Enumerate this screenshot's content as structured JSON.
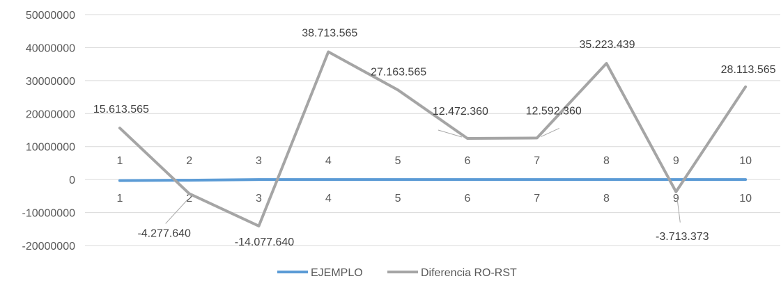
{
  "chart_data": {
    "type": "line",
    "title": "",
    "xlabel": "",
    "ylabel": "",
    "categories": [
      "1",
      "2",
      "3",
      "4",
      "5",
      "6",
      "7",
      "8",
      "9",
      "10"
    ],
    "ylim": [
      -20000000,
      50000000
    ],
    "yticks": [
      50000000,
      40000000,
      30000000,
      20000000,
      10000000,
      0,
      -10000000,
      -20000000
    ],
    "ytick_labels": [
      "50000000",
      "40000000",
      "30000000",
      "20000000",
      "10000000",
      "0",
      "-10000000",
      "-20000000"
    ],
    "grid": true,
    "legend_position": "bottom",
    "series": [
      {
        "name": "EJEMPLO",
        "color": "#5B9BD5",
        "values": [
          -300000,
          -200000,
          0,
          0,
          0,
          0,
          0,
          0,
          0,
          0
        ]
      },
      {
        "name": "Diferencia RO-RST",
        "color": "#A5A5A5",
        "values": [
          15613565,
          -4277640,
          -14077640,
          38713565,
          27163565,
          12472360,
          12592360,
          35223439,
          -3713373,
          28113565
        ],
        "data_labels": [
          "15.613.565",
          "-4.277.640",
          "-14.077.640",
          "38.713.565",
          "27.163.565",
          "12.472.360",
          "12.592.360",
          "35.223.439",
          "-3.713.373",
          "28.113.565"
        ]
      }
    ]
  }
}
